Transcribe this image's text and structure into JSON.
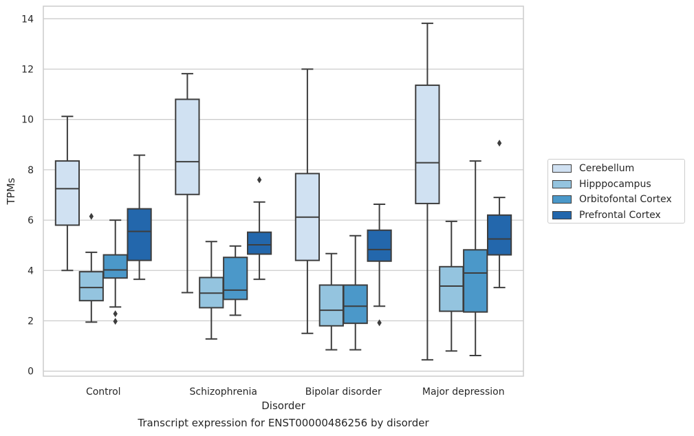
{
  "chart_data": {
    "type": "box",
    "categories": [
      "Control",
      "Schizophrenia",
      "Bipolar disorder",
      "Major depression"
    ],
    "xlabel": "Disorder",
    "ylabel": "TPMs",
    "caption": "Transcript expression for ENST00000486256 by disorder",
    "ylim": [
      -0.2,
      14.5
    ],
    "yticks": [
      0,
      2,
      4,
      6,
      8,
      10,
      12,
      14
    ],
    "grid": "horizontal",
    "legend_position": "right",
    "series": [
      {
        "name": "Cerebellum",
        "color": "#d0e1f2",
        "boxes": [
          {
            "whisker_low": 4.0,
            "q1": 5.8,
            "median": 7.25,
            "q3": 8.35,
            "whisker_high": 10.12,
            "outliers": []
          },
          {
            "whisker_low": 3.12,
            "q1": 7.02,
            "median": 8.32,
            "q3": 10.8,
            "whisker_high": 11.82,
            "outliers": []
          },
          {
            "whisker_low": 1.5,
            "q1": 4.4,
            "median": 6.12,
            "q3": 7.85,
            "whisker_high": 12.0,
            "outliers": []
          },
          {
            "whisker_low": 0.45,
            "q1": 6.66,
            "median": 8.28,
            "q3": 11.36,
            "whisker_high": 13.82,
            "outliers": []
          }
        ]
      },
      {
        "name": "Hipppocampus",
        "color": "#94c4df",
        "boxes": [
          {
            "whisker_low": 1.95,
            "q1": 2.8,
            "median": 3.32,
            "q3": 3.95,
            "whisker_high": 4.72,
            "outliers": [
              6.15
            ]
          },
          {
            "whisker_low": 1.28,
            "q1": 2.52,
            "median": 3.1,
            "q3": 3.72,
            "whisker_high": 5.15,
            "outliers": []
          },
          {
            "whisker_low": 0.85,
            "q1": 1.8,
            "median": 2.42,
            "q3": 3.42,
            "whisker_high": 4.67,
            "outliers": []
          },
          {
            "whisker_low": 0.8,
            "q1": 2.38,
            "median": 3.38,
            "q3": 4.15,
            "whisker_high": 5.95,
            "outliers": []
          }
        ]
      },
      {
        "name": "Orbitofontal Cortex",
        "color": "#4b98c9",
        "boxes": [
          {
            "whisker_low": 2.55,
            "q1": 3.7,
            "median": 4.02,
            "q3": 4.62,
            "whisker_high": 6.0,
            "outliers": [
              2.28,
              1.98
            ]
          },
          {
            "whisker_low": 2.22,
            "q1": 2.85,
            "median": 3.22,
            "q3": 4.52,
            "whisker_high": 4.97,
            "outliers": []
          },
          {
            "whisker_low": 0.85,
            "q1": 1.9,
            "median": 2.58,
            "q3": 3.42,
            "whisker_high": 5.38,
            "outliers": []
          },
          {
            "whisker_low": 0.62,
            "q1": 2.35,
            "median": 3.9,
            "q3": 4.82,
            "whisker_high": 8.35,
            "outliers": []
          }
        ]
      },
      {
        "name": "Prefrontal Cortex",
        "color": "#2367ac",
        "boxes": [
          {
            "whisker_low": 3.65,
            "q1": 4.4,
            "median": 5.55,
            "q3": 6.45,
            "whisker_high": 8.58,
            "outliers": []
          },
          {
            "whisker_low": 3.65,
            "q1": 4.65,
            "median": 5.02,
            "q3": 5.52,
            "whisker_high": 6.72,
            "outliers": [
              7.6
            ]
          },
          {
            "whisker_low": 2.58,
            "q1": 4.37,
            "median": 4.83,
            "q3": 5.6,
            "whisker_high": 6.63,
            "outliers": [
              1.92
            ]
          },
          {
            "whisker_low": 3.32,
            "q1": 4.62,
            "median": 5.25,
            "q3": 6.2,
            "whisker_high": 6.9,
            "outliers": [
              9.06
            ]
          }
        ]
      }
    ]
  }
}
